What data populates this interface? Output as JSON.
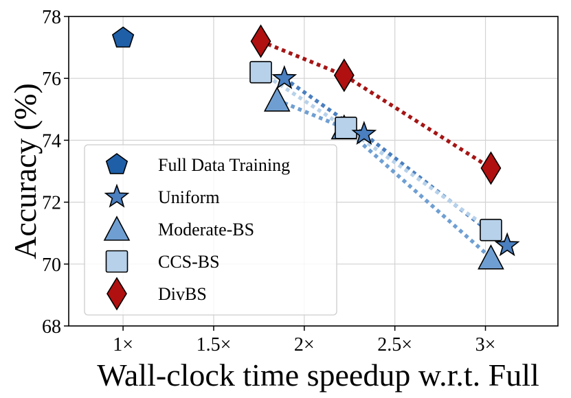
{
  "chart_data": {
    "type": "scatter",
    "title": "",
    "xlabel": "Wall-clock time speedup w.r.t. Full",
    "ylabel": "Accuracy (%)",
    "xlim": [
      0.7,
      3.4
    ],
    "ylim": [
      68,
      78
    ],
    "xticks": [
      1,
      1.5,
      2,
      2.5,
      3
    ],
    "xtick_labels": [
      "1×",
      "1.5×",
      "2×",
      "2.5×",
      "3×"
    ],
    "yticks": [
      68,
      70,
      72,
      74,
      76,
      78
    ],
    "ytick_labels": [
      "68",
      "70",
      "72",
      "74",
      "76",
      "78"
    ],
    "grid": true,
    "legend_position": "lower-left",
    "series": [
      {
        "name": "Full Data Training",
        "marker": "pentagon",
        "color": "#1f5fa8",
        "line": false,
        "x": [
          1.0
        ],
        "y": [
          77.3
        ]
      },
      {
        "name": "Uniform",
        "marker": "star",
        "color": "#4a7fc0",
        "line": true,
        "line_color": "#4a7fc0",
        "x": [
          1.89,
          2.33,
          3.12
        ],
        "y": [
          76.0,
          74.2,
          70.6
        ]
      },
      {
        "name": "Moderate-BS",
        "marker": "triangle",
        "color": "#6f9fd2",
        "line": true,
        "line_color": "#6f9fd2",
        "x": [
          1.85,
          2.22,
          3.03
        ],
        "y": [
          75.3,
          74.4,
          70.2
        ]
      },
      {
        "name": "CCS-BS",
        "marker": "square",
        "color": "#b7d1ea",
        "line": true,
        "line_color": "#b7d1ea",
        "x": [
          1.76,
          2.23,
          3.03
        ],
        "y": [
          76.2,
          74.4,
          71.1
        ]
      },
      {
        "name": "DivBS",
        "marker": "diamond",
        "color": "#b01010",
        "line": true,
        "line_color": "#a51515",
        "x": [
          1.76,
          2.22,
          3.03
        ],
        "y": [
          77.2,
          76.1,
          73.1
        ]
      }
    ]
  }
}
